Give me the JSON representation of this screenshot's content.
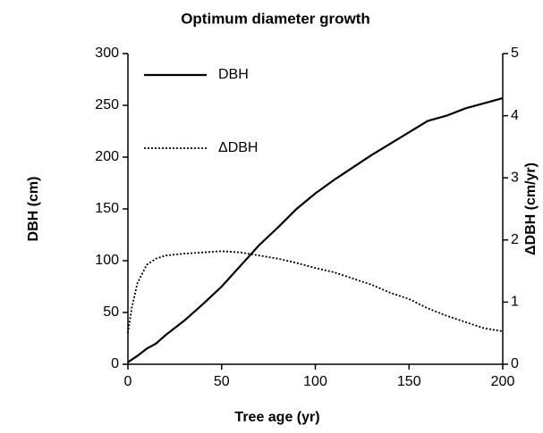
{
  "chart_data": {
    "type": "line",
    "title": "Optimum diameter growth",
    "x_label": "Tree age (yr)",
    "y_label": "DBH (cm)",
    "y2_label": "ΔDBH (cm/yr)",
    "xlim": [
      0,
      200
    ],
    "xticks": [
      0,
      50,
      100,
      150,
      200
    ],
    "ylim": [
      0,
      300
    ],
    "yticks": [
      0,
      50,
      100,
      150,
      200,
      250,
      300
    ],
    "y2lim": [
      0,
      5
    ],
    "y2ticks": [
      0,
      1,
      2,
      3,
      4,
      5
    ],
    "legend": "top-left",
    "series": [
      {
        "name": "DBH",
        "color": "#000000",
        "style": "solid",
        "x": [
          0,
          5,
          10,
          15,
          20,
          30,
          40,
          50,
          60,
          70,
          80,
          90,
          100,
          110,
          120,
          130,
          140,
          150,
          160,
          170,
          180,
          190,
          200
        ],
        "values": [
          2,
          8,
          15,
          20,
          28,
          42,
          58,
          75,
          95,
          115,
          132,
          150,
          165,
          178,
          190,
          202,
          213,
          224,
          235,
          240,
          247,
          252,
          257
        ]
      },
      {
        "name": "ΔDBH",
        "color": "#000000",
        "style": "dotted",
        "axis": "y2",
        "x": [
          0,
          2,
          5,
          10,
          15,
          20,
          30,
          40,
          50,
          60,
          70,
          80,
          90,
          100,
          110,
          120,
          130,
          140,
          150,
          160,
          170,
          180,
          190,
          200
        ],
        "values": [
          0.5,
          0.9,
          1.3,
          1.6,
          1.7,
          1.75,
          1.78,
          1.8,
          1.82,
          1.8,
          1.75,
          1.7,
          1.63,
          1.55,
          1.48,
          1.38,
          1.28,
          1.15,
          1.05,
          0.9,
          0.78,
          0.68,
          0.58,
          0.53
        ]
      }
    ]
  }
}
